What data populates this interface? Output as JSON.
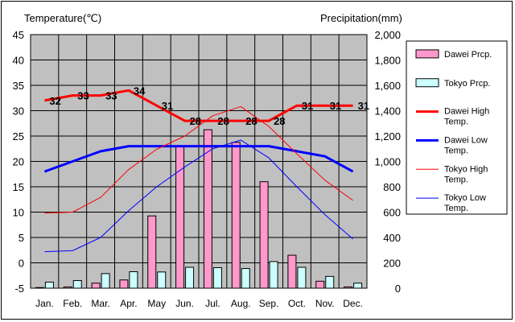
{
  "chart_data": {
    "type": "bar+line",
    "left_axis_title": "Temperature(℃)",
    "right_axis_title": "Precipitation(mm)",
    "temp_range": [
      -5,
      45
    ],
    "temp_ticks": [
      -5,
      0,
      5,
      10,
      15,
      20,
      25,
      30,
      35,
      40,
      45
    ],
    "precip_range": [
      0,
      2000
    ],
    "precip_ticks": [
      0,
      200,
      400,
      600,
      800,
      1000,
      1200,
      1400,
      1600,
      1800,
      2000
    ],
    "categories": [
      "Jan.",
      "Feb.",
      "Mar.",
      "Apr.",
      "May",
      "Jun.",
      "Jul.",
      "Aug.",
      "Sep.",
      "Oct.",
      "Nov.",
      "Dec."
    ],
    "grid": true,
    "legend_position": "right",
    "bar_series": [
      {
        "name": "Dawei Prcp.",
        "color": "#ff99cc",
        "values": [
          5,
          10,
          40,
          65,
          570,
          1120,
          1250,
          1150,
          840,
          260,
          55,
          10
        ]
      },
      {
        "name": "Tokyo Prcp.",
        "color": "#ccffff",
        "values": [
          48,
          60,
          115,
          130,
          128,
          165,
          162,
          155,
          210,
          165,
          93,
          40
        ]
      }
    ],
    "line_series": [
      {
        "name": "Dawei High Temp.",
        "color": "#ff0000",
        "width": "thick",
        "values": [
          32,
          33,
          33,
          34,
          31,
          28,
          28,
          28,
          28,
          31,
          31,
          31
        ],
        "labels": [
          "32",
          "33",
          "33",
          "34",
          "31",
          "28",
          "28",
          "28",
          "28",
          "31",
          "31",
          "31"
        ]
      },
      {
        "name": "Dawei Low Temp.",
        "color": "#0000ff",
        "width": "thick",
        "values": [
          18,
          20,
          22,
          23,
          23,
          23,
          23,
          23,
          23,
          22,
          21,
          18
        ]
      },
      {
        "name": "Tokyo High Temp.",
        "color": "#ff0000",
        "width": "thin",
        "values": [
          9.8,
          10,
          12.9,
          18.4,
          22.4,
          25,
          29,
          30.8,
          26.9,
          21.5,
          16.3,
          12.3
        ]
      },
      {
        "name": "Tokyo Low Temp.",
        "color": "#0000ff",
        "width": "thin",
        "values": [
          2.2,
          2.4,
          5,
          10.3,
          15,
          18.9,
          22.5,
          24.2,
          20.7,
          15,
          9.5,
          4.7
        ]
      }
    ]
  }
}
